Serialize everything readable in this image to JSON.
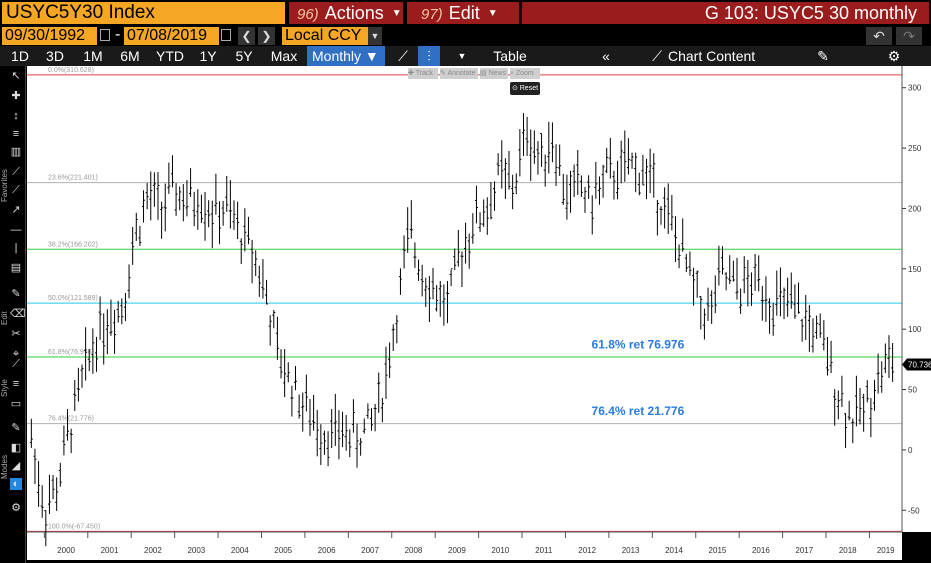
{
  "header": {
    "ticker": "USYC5Y30 Index",
    "actions_num": "96)",
    "actions_label": "Actions",
    "edit_num": "97)",
    "edit_label": "Edit",
    "title": "G 103: USYC5 30 monthly"
  },
  "range": {
    "start": "09/30/1992",
    "end": "07/08/2019",
    "dash": "-",
    "currency": "Local CCY"
  },
  "toolbar": {
    "periods": [
      "1D",
      "3D",
      "1M",
      "6M",
      "YTD",
      "1Y",
      "5Y",
      "Max"
    ],
    "frequency": "Monthly",
    "table_label": "Table",
    "chart_content_label": "Chart Content"
  },
  "rail_labels": {
    "favorites": "Favorites",
    "edit": "Edit",
    "style": "Style",
    "modes": "Modes"
  },
  "mini_tools": {
    "track": "Track",
    "annotate": "Annotate",
    "news": "News",
    "zoom": "Zoom",
    "reset": "Reset"
  },
  "colors": {
    "fib_red": "#e04040",
    "fib_gray": "#b0b0b0",
    "fib_green": "#2ecc40",
    "fib_cyan": "#29c5e6",
    "annotation_blue": "#2a7ae2",
    "bar": "#000000",
    "title_bg": "#9b1c1c",
    "ticker_bg": "#f5a623",
    "selected": "#2f6fc4"
  },
  "chart_data": {
    "type": "bar",
    "subtype": "ohlc",
    "ylim": [
      -68,
      318
    ],
    "yticks": [
      -50,
      0,
      50,
      100,
      150,
      200,
      250,
      300
    ],
    "xticks": [
      "2000",
      "2001",
      "2002",
      "2003",
      "2004",
      "2005",
      "2006",
      "2007",
      "2008",
      "2009",
      "2010",
      "2011",
      "2012",
      "2013",
      "2014",
      "2015",
      "2016",
      "2017",
      "2018",
      "2019"
    ],
    "xlim": [
      1999.6,
      2019.75
    ],
    "last_value_label": "70.736",
    "last_value": 70.736,
    "fib_levels": [
      {
        "label": "0.0%(310.628)",
        "value": 310.628,
        "color": "#e04040"
      },
      {
        "label": "23.6%(221.401)",
        "value": 221.401,
        "color": "#b0b0b0"
      },
      {
        "label": "38.2%(166.202)",
        "value": 166.202,
        "color": "#2ecc40"
      },
      {
        "label": "50.0%(121.589)",
        "value": 121.589,
        "color": "#29c5e6"
      },
      {
        "label": "61.8%(76.976)",
        "value": 76.976,
        "color": "#2ecc40"
      },
      {
        "label": "76.4%(21.776)",
        "value": 21.776,
        "color": "#b0b0b0"
      },
      {
        "label": "100.0%(-67.450)",
        "value": -67.45,
        "color": "#e04040"
      }
    ],
    "annotations": [
      {
        "text": "61.8% ret 76.976",
        "x": 2012.6,
        "y": 84
      },
      {
        "text": "76.4% ret 21.776",
        "x": 2012.6,
        "y": 29
      }
    ],
    "series": [
      {
        "values_xy": [
          [
            1999.7,
            10
          ],
          [
            2000.0,
            -50
          ],
          [
            2000.3,
            -30
          ],
          [
            2000.6,
            20
          ],
          [
            2000.9,
            60
          ],
          [
            2001.2,
            95
          ],
          [
            2001.5,
            110
          ],
          [
            2001.8,
            120
          ],
          [
            2002.1,
            180
          ],
          [
            2002.4,
            210
          ],
          [
            2002.7,
            200
          ],
          [
            2003.0,
            215
          ],
          [
            2003.3,
            205
          ],
          [
            2003.6,
            210
          ],
          [
            2003.9,
            195
          ],
          [
            2004.2,
            200
          ],
          [
            2004.5,
            180
          ],
          [
            2004.8,
            165
          ],
          [
            2005.1,
            130
          ],
          [
            2005.4,
            75
          ],
          [
            2005.7,
            55
          ],
          [
            2006.0,
            35
          ],
          [
            2006.3,
            20
          ],
          [
            2006.6,
            12
          ],
          [
            2006.9,
            15
          ],
          [
            2007.2,
            10
          ],
          [
            2007.5,
            20
          ],
          [
            2007.8,
            50
          ],
          [
            2008.1,
            110
          ],
          [
            2008.4,
            180
          ],
          [
            2008.7,
            150
          ],
          [
            2009.0,
            130
          ],
          [
            2009.3,
            120
          ],
          [
            2009.6,
            165
          ],
          [
            2009.9,
            190
          ],
          [
            2010.2,
            200
          ],
          [
            2010.5,
            230
          ],
          [
            2010.8,
            215
          ],
          [
            2011.1,
            265
          ],
          [
            2011.4,
            240
          ],
          [
            2011.7,
            260
          ],
          [
            2012.0,
            210
          ],
          [
            2012.3,
            220
          ],
          [
            2012.6,
            205
          ],
          [
            2012.9,
            225
          ],
          [
            2013.2,
            230
          ],
          [
            2013.5,
            235
          ],
          [
            2013.8,
            230
          ],
          [
            2014.1,
            215
          ],
          [
            2014.4,
            190
          ],
          [
            2014.7,
            160
          ],
          [
            2015.0,
            130
          ],
          [
            2015.3,
            110
          ],
          [
            2015.6,
            145
          ],
          [
            2015.9,
            135
          ],
          [
            2016.2,
            135
          ],
          [
            2016.5,
            140
          ],
          [
            2016.8,
            120
          ],
          [
            2017.1,
            120
          ],
          [
            2017.4,
            110
          ],
          [
            2017.7,
            100
          ],
          [
            2018.0,
            80
          ],
          [
            2018.3,
            45
          ],
          [
            2018.6,
            25
          ],
          [
            2018.9,
            35
          ],
          [
            2019.2,
            60
          ],
          [
            2019.5,
            75
          ],
          [
            2019.6,
            70.736
          ]
        ]
      }
    ]
  }
}
